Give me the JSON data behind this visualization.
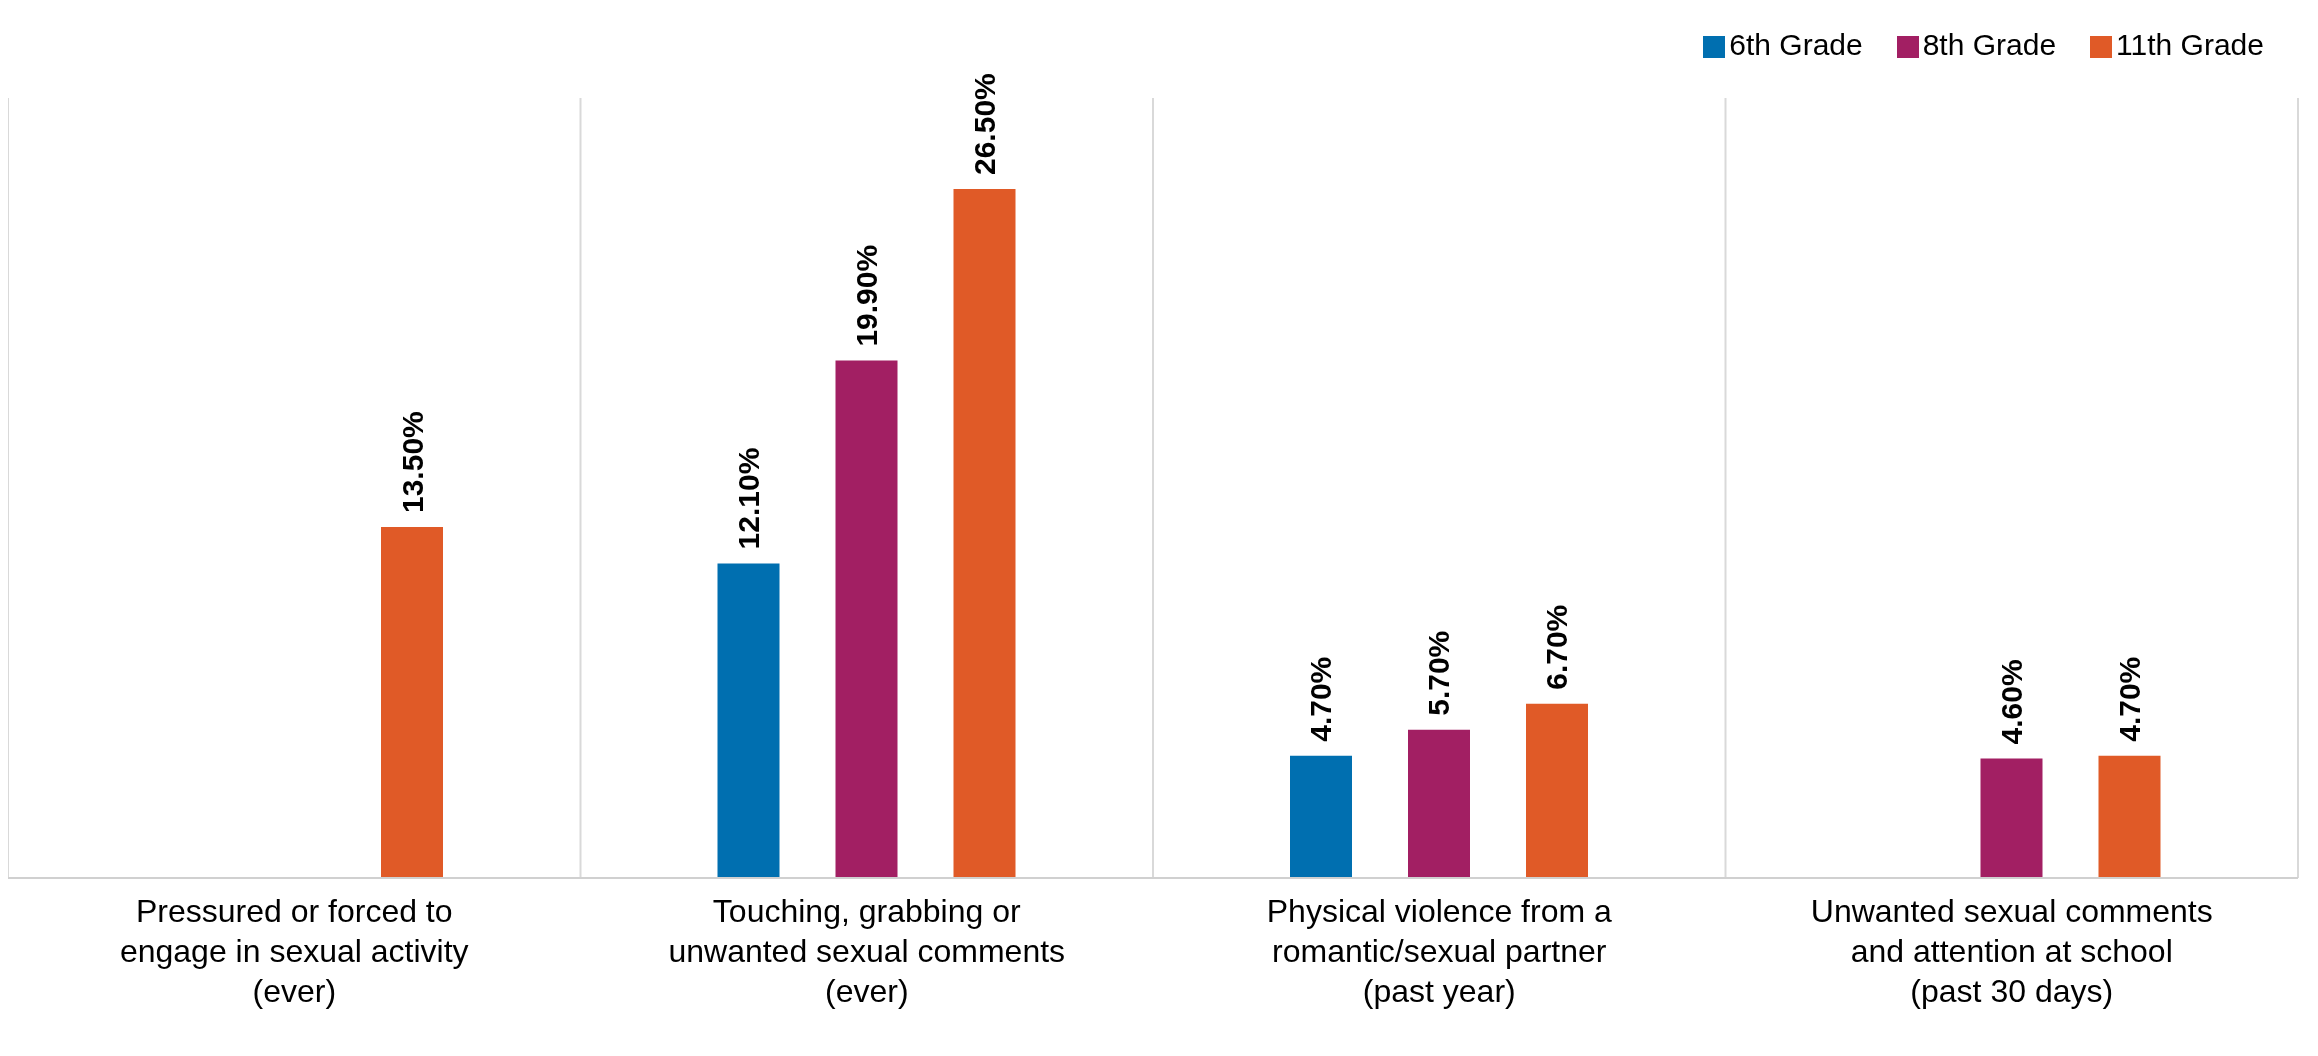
{
  "chart_data": {
    "type": "bar",
    "categories": [
      "Pressured or forced to engage in sexual activity (ever)",
      "Touching, grabbing or unwanted sexual comments (ever)",
      "Physical violence from a romantic/sexual partner (past year)",
      "Unwanted sexual comments and attention at school (past 30 days)"
    ],
    "series": [
      {
        "name": "6th Grade",
        "color": "#006fb0",
        "values": [
          null,
          12.1,
          4.7,
          null
        ],
        "value_labels": [
          null,
          "12.10%",
          "4.70%",
          null
        ]
      },
      {
        "name": "8th Grade",
        "color": "#a21f63",
        "values": [
          null,
          19.9,
          5.7,
          4.6
        ],
        "value_labels": [
          null,
          "19.90%",
          "5.70%",
          "4.60%"
        ]
      },
      {
        "name": "11th Grade",
        "color": "#e05a27",
        "values": [
          13.5,
          26.5,
          6.7,
          4.7
        ],
        "value_labels": [
          "13.50%",
          "26.50%",
          "6.70%",
          "4.70%"
        ]
      }
    ],
    "ylim": [
      0,
      30
    ],
    "grid": "x",
    "legend": "top right"
  }
}
